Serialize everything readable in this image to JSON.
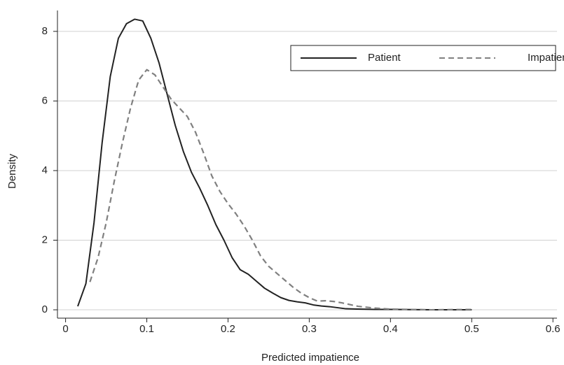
{
  "chart_data": {
    "type": "line",
    "x_label": "Predicted impatience",
    "y_label": "Density",
    "xlim": [
      -0.01,
      0.605
    ],
    "ylim": [
      -0.24,
      8.6
    ],
    "xticks": [
      0,
      0.1,
      0.2,
      0.3,
      0.4,
      0.5,
      0.6
    ],
    "yticks": [
      0,
      2,
      4,
      6,
      8
    ],
    "grid": true,
    "legend": "top-right",
    "series": [
      {
        "name": "Patient",
        "color": "#222222",
        "dashed": false,
        "x": [
          0.015,
          0.025,
          0.035,
          0.045,
          0.055,
          0.065,
          0.075,
          0.085,
          0.095,
          0.105,
          0.115,
          0.125,
          0.135,
          0.145,
          0.155,
          0.165,
          0.175,
          0.185,
          0.195,
          0.205,
          0.215,
          0.225,
          0.235,
          0.245,
          0.255,
          0.265,
          0.275,
          0.285,
          0.295,
          0.305,
          0.315,
          0.325,
          0.335,
          0.345,
          0.36,
          0.38,
          0.4,
          0.45,
          0.5
        ],
        "values": [
          0.1,
          0.75,
          2.5,
          4.8,
          6.7,
          7.8,
          8.22,
          8.35,
          8.3,
          7.8,
          7.1,
          6.2,
          5.3,
          4.55,
          3.95,
          3.5,
          3.0,
          2.45,
          2.0,
          1.5,
          1.15,
          1.02,
          0.82,
          0.62,
          0.48,
          0.35,
          0.27,
          0.23,
          0.2,
          0.14,
          0.11,
          0.09,
          0.06,
          0.03,
          0.02,
          0.01,
          0.01,
          0,
          0
        ]
      },
      {
        "name": "Impatient",
        "color": "#808080",
        "dashed": true,
        "x": [
          0.03,
          0.04,
          0.05,
          0.06,
          0.07,
          0.08,
          0.09,
          0.1,
          0.11,
          0.12,
          0.13,
          0.14,
          0.15,
          0.16,
          0.17,
          0.18,
          0.19,
          0.2,
          0.21,
          0.22,
          0.23,
          0.24,
          0.25,
          0.26,
          0.27,
          0.28,
          0.29,
          0.3,
          0.31,
          0.32,
          0.33,
          0.34,
          0.35,
          0.36,
          0.38,
          0.4,
          0.45,
          0.5
        ],
        "values": [
          0.8,
          1.5,
          2.5,
          3.7,
          4.8,
          5.8,
          6.6,
          6.9,
          6.75,
          6.4,
          6.05,
          5.8,
          5.55,
          5.1,
          4.5,
          3.85,
          3.4,
          3.05,
          2.75,
          2.4,
          2.0,
          1.55,
          1.25,
          1.05,
          0.85,
          0.65,
          0.48,
          0.35,
          0.25,
          0.26,
          0.24,
          0.2,
          0.15,
          0.1,
          0.05,
          0.02,
          0,
          0.01
        ]
      }
    ]
  }
}
